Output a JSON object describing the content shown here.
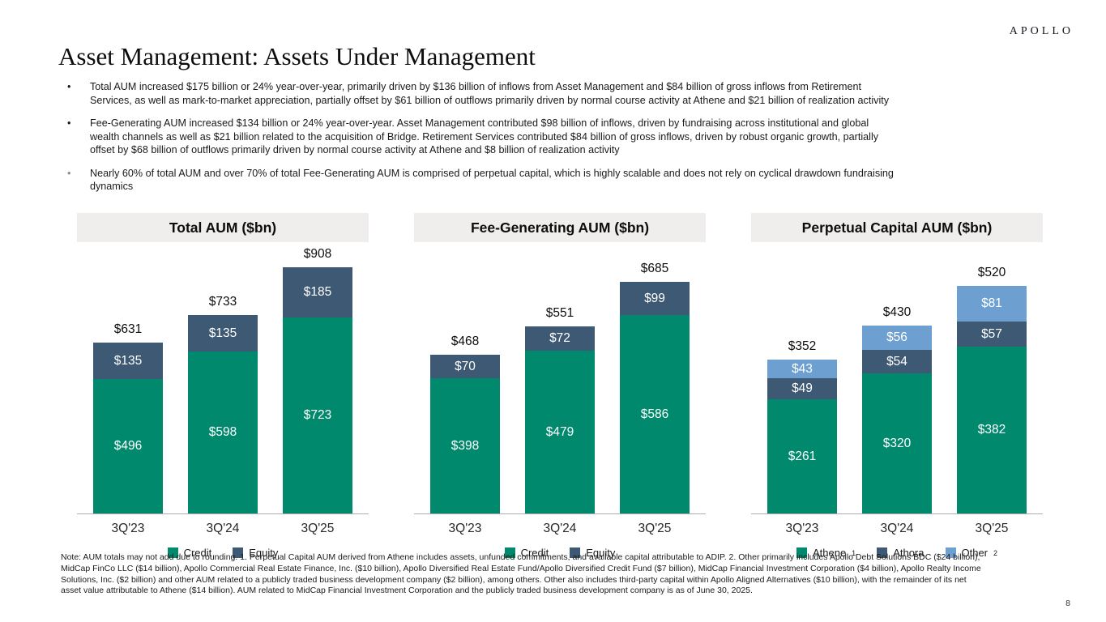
{
  "brand": {
    "logo_text": "APOLLO"
  },
  "header": {
    "title": "Asset Management: Assets Under Management"
  },
  "bullets": [
    {
      "marker": "•",
      "text": "Total AUM increased $175 billion or 24% year-over-year, primarily driven by $136 billion of inflows from Asset Management and $84 billion of gross inflows from Retirement\nServices, as well as mark-to-market appreciation, partially offset by $61 billion of outflows primarily driven by normal course activity at Athene and $21 billion of realization activity"
    },
    {
      "marker": "•",
      "text": "Fee-Generating AUM increased $134 billion or 24% year-over-year. Asset Management contributed $98 billion of inflows, driven by fundraising across institutional and global\nwealth channels as well as $21 billion related to the acquisition of Bridge. Retirement Services contributed $84 billion of gross inflows, driven by robust organic growth, partially\noffset by $68 billion of outflows primarily driven by normal course activity at Athene and $8 billion of realization activity"
    },
    {
      "marker": "•",
      "text": "Nearly 60% of total AUM and over 70% of total Fee-Generating AUM is comprised of perpetual capital, which is highly scalable and does not rely on cyclical drawdown fundraising\ndynamics"
    }
  ],
  "chart_data": [
    {
      "type": "bar",
      "stacked": true,
      "title": "Total AUM ($bn)",
      "categories": [
        "3Q'23",
        "3Q'24",
        "3Q'25"
      ],
      "series": [
        {
          "name": "Credit",
          "sup": "",
          "color": "#00896C",
          "values": [
            496,
            598,
            723
          ]
        },
        {
          "name": "Equity",
          "sup": "",
          "color": "#3E5973",
          "values": [
            135,
            135,
            185
          ]
        }
      ],
      "totals": [
        631,
        733,
        908
      ],
      "value_prefix": "$",
      "xlabel": "",
      "ylabel": "",
      "ylim": [
        0,
        1000
      ],
      "grid": false,
      "legend_position": "bottom"
    },
    {
      "type": "bar",
      "stacked": true,
      "title": "Fee-Generating AUM ($bn)",
      "categories": [
        "3Q'23",
        "3Q'24",
        "3Q'25"
      ],
      "series": [
        {
          "name": "Credit",
          "sup": "",
          "color": "#00896C",
          "values": [
            398,
            479,
            586
          ]
        },
        {
          "name": "Equity",
          "sup": "",
          "color": "#3E5973",
          "values": [
            70,
            72,
            99
          ]
        }
      ],
      "totals": [
        468,
        551,
        685
      ],
      "value_prefix": "$",
      "xlabel": "",
      "ylabel": "",
      "ylim": [
        0,
        800
      ],
      "grid": false,
      "legend_position": "bottom"
    },
    {
      "type": "bar",
      "stacked": true,
      "title": "Perpetual Capital AUM ($bn)",
      "categories": [
        "3Q'23",
        "3Q'24",
        "3Q'25"
      ],
      "series": [
        {
          "name": "Athene",
          "sup": "1",
          "color": "#00896C",
          "values": [
            261,
            320,
            382
          ]
        },
        {
          "name": "Athora",
          "sup": "",
          "color": "#3E5973",
          "values": [
            49,
            54,
            57
          ]
        },
        {
          "name": "Other",
          "sup": "2",
          "color": "#6DA0D1",
          "values": [
            43,
            56,
            81
          ]
        }
      ],
      "totals": [
        352,
        430,
        520
      ],
      "value_prefix": "$",
      "xlabel": "",
      "ylabel": "",
      "ylim": [
        0,
        620
      ],
      "grid": false,
      "legend_position": "bottom"
    }
  ],
  "footnote": "Note: AUM totals may not add due to rounding. 1. Perpetual Capital AUM derived from Athene includes assets, unfunded commitments, and available capital attributable to ADIP. 2. Other primarily includes Apollo Debt Solutions BDC ($24 billion),\nMidCap FinCo LLC ($14 billion), Apollo Commercial Real Estate Finance, Inc. ($10 billion), Apollo Diversified Real Estate Fund/Apollo Diversified Credit Fund ($7 billion), MidCap Financial Investment Corporation ($4 billion), Apollo Realty Income\nSolutions, Inc. ($2 billion) and other AUM related to a publicly traded business development company ($2 billion), among others. Other also includes third-party capital within Apollo Aligned Alternatives ($10 billion), with the remainder of its net\nasset value attributable to Athene ($14 billion). AUM related to MidCap Financial Investment Corporation and the publicly traded business development company is as of June 30, 2025.",
  "page": {
    "number": "8"
  }
}
